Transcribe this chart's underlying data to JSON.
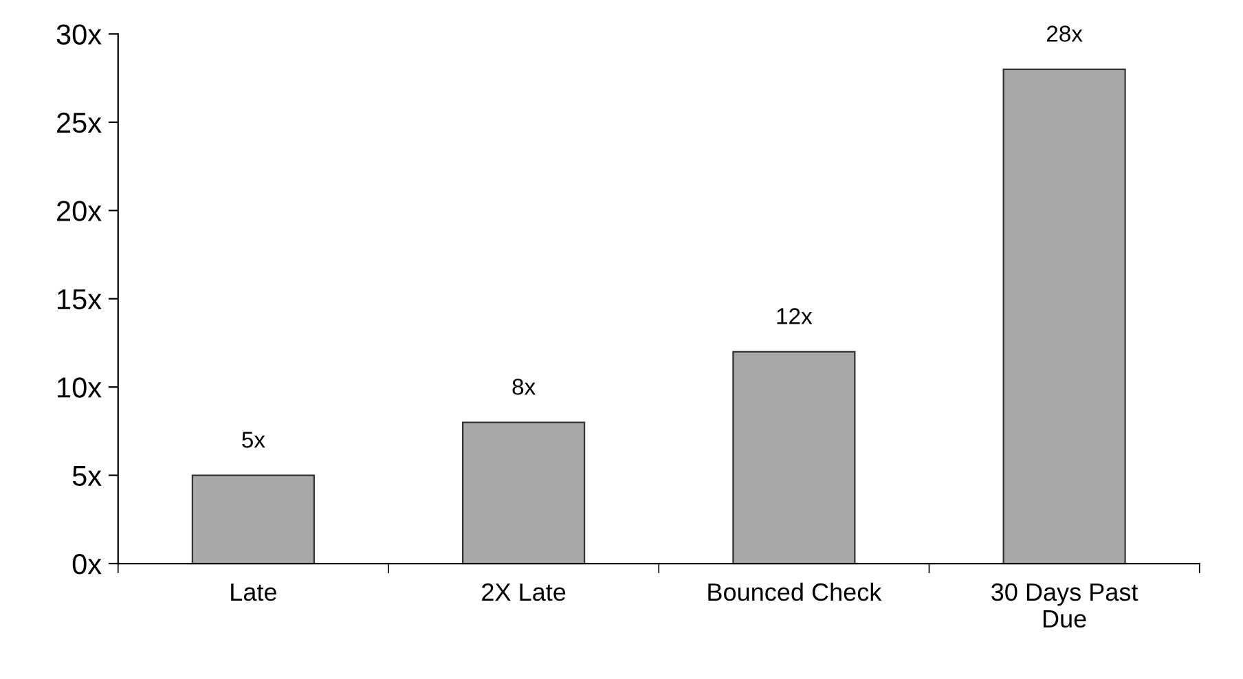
{
  "chart_data": {
    "type": "bar",
    "categories": [
      "Late",
      "2X Late",
      "Bounced Check",
      "30 Days Past\nDue"
    ],
    "values": [
      5,
      8,
      12,
      28
    ],
    "value_labels": [
      "5x",
      "8x",
      "12x",
      "28x"
    ],
    "color": "#a8a8a8",
    "ylim": [
      0,
      30
    ],
    "yticks": [
      {
        "value": 0,
        "label": "0x"
      },
      {
        "value": 5,
        "label": "5x"
      },
      {
        "value": 10,
        "label": "10x"
      },
      {
        "value": 15,
        "label": "15x"
      },
      {
        "value": 20,
        "label": "20x"
      },
      {
        "value": 25,
        "label": "25x"
      },
      {
        "value": 30,
        "label": "30x"
      }
    ],
    "grid": false,
    "legend": false
  }
}
